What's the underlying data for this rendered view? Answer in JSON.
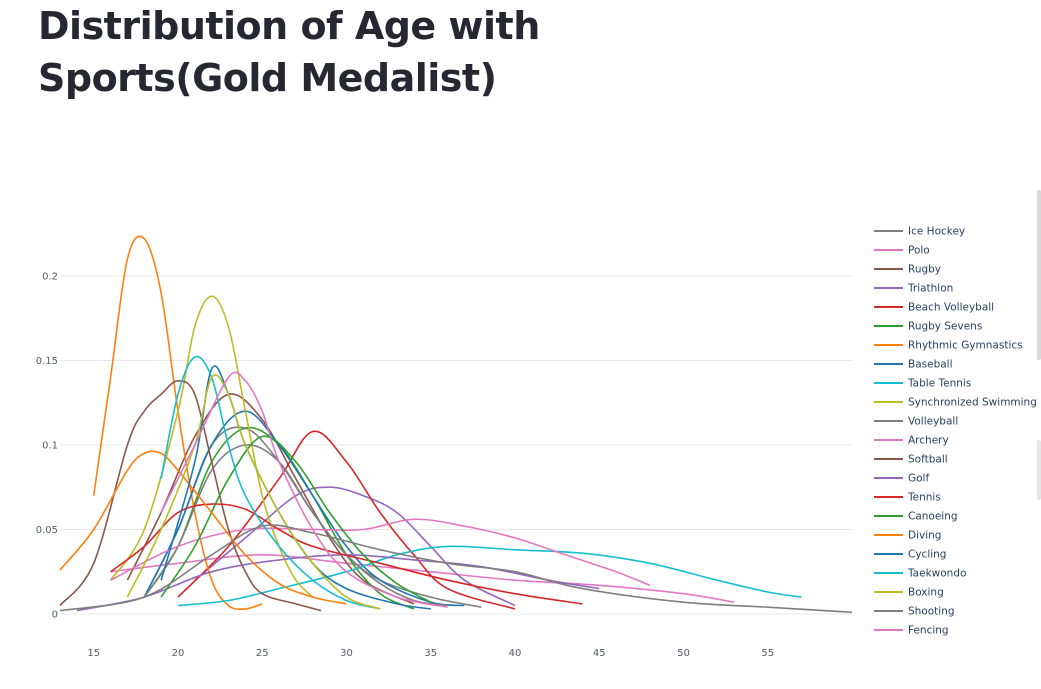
{
  "page": {
    "title": "Distribution of Age with Sports(Gold Medalist)"
  },
  "chart_data": {
    "type": "line",
    "title": "",
    "xlabel": "",
    "ylabel": "",
    "xlim": [
      13,
      60
    ],
    "ylim": [
      0,
      0.2
    ],
    "x_ticks": [
      15,
      20,
      25,
      30,
      35,
      40,
      45,
      50,
      55
    ],
    "y_ticks": [
      0,
      0.05,
      0.1,
      0.15,
      0.2
    ],
    "y_tick_labels": [
      "0",
      "0.05",
      "0.1",
      "0.15",
      "0.2"
    ],
    "grid": true,
    "legend": "right",
    "series": [
      {
        "name": "Ice Hockey",
        "color": "#7f7f7f",
        "points": [
          [
            18,
            0.01
          ],
          [
            20,
            0.05
          ],
          [
            22,
            0.1
          ],
          [
            24,
            0.11
          ],
          [
            26,
            0.09
          ],
          [
            28,
            0.06
          ],
          [
            30,
            0.035
          ],
          [
            32,
            0.02
          ],
          [
            35,
            0.01
          ],
          [
            38,
            0.004
          ]
        ]
      },
      {
        "name": "Polo",
        "color": "#e377c2",
        "points": [
          [
            16,
            0.025
          ],
          [
            20,
            0.03
          ],
          [
            25,
            0.035
          ],
          [
            30,
            0.03
          ],
          [
            35,
            0.025
          ],
          [
            40,
            0.02
          ],
          [
            45,
            0.017
          ],
          [
            50,
            0.012
          ],
          [
            53,
            0.007
          ]
        ]
      },
      {
        "name": "Rugby",
        "color": "#8c564b",
        "points": [
          [
            17,
            0.02
          ],
          [
            19,
            0.06
          ],
          [
            21,
            0.105
          ],
          [
            23,
            0.13
          ],
          [
            25,
            0.115
          ],
          [
            27,
            0.08
          ],
          [
            29,
            0.045
          ],
          [
            31,
            0.02
          ],
          [
            34,
            0.006
          ]
        ]
      },
      {
        "name": "Triathlon",
        "color": "#9467bd",
        "points": [
          [
            21,
            0.02
          ],
          [
            24,
            0.045
          ],
          [
            27,
            0.07
          ],
          [
            29,
            0.075
          ],
          [
            31,
            0.07
          ],
          [
            33,
            0.06
          ],
          [
            35,
            0.04
          ],
          [
            37,
            0.02
          ],
          [
            40,
            0.005
          ]
        ]
      },
      {
        "name": "Beach Volleyball",
        "color": "#d62728",
        "points": [
          [
            20,
            0.01
          ],
          [
            23,
            0.04
          ],
          [
            26,
            0.08
          ],
          [
            28,
            0.108
          ],
          [
            30,
            0.09
          ],
          [
            32,
            0.06
          ],
          [
            34,
            0.035
          ],
          [
            36,
            0.015
          ],
          [
            40,
            0.003
          ]
        ]
      },
      {
        "name": "Rugby Sevens",
        "color": "#2ca02c",
        "points": [
          [
            18,
            0.01
          ],
          [
            20,
            0.04
          ],
          [
            22,
            0.09
          ],
          [
            24,
            0.11
          ],
          [
            26,
            0.1
          ],
          [
            28,
            0.07
          ],
          [
            30,
            0.035
          ],
          [
            32,
            0.012
          ],
          [
            34,
            0.003
          ]
        ]
      },
      {
        "name": "Rhythmic Gymnastics",
        "color": "#ff7f0e",
        "points": [
          [
            15,
            0.07
          ],
          [
            16,
            0.14
          ],
          [
            17,
            0.21
          ],
          [
            18,
            0.222
          ],
          [
            19,
            0.19
          ],
          [
            20,
            0.12
          ],
          [
            21,
            0.06
          ],
          [
            22,
            0.02
          ],
          [
            23,
            0.005
          ],
          [
            24,
            0.003
          ],
          [
            25,
            0.006
          ]
        ]
      },
      {
        "name": "Baseball",
        "color": "#1f77b4",
        "points": [
          [
            18,
            0.01
          ],
          [
            20,
            0.05
          ],
          [
            22,
            0.1
          ],
          [
            24,
            0.12
          ],
          [
            26,
            0.1
          ],
          [
            28,
            0.07
          ],
          [
            30,
            0.04
          ],
          [
            32,
            0.02
          ],
          [
            35,
            0.007
          ],
          [
            37,
            0.005
          ]
        ]
      },
      {
        "name": "Table Tennis",
        "color": "#17becf",
        "points": [
          [
            20,
            0.005
          ],
          [
            23,
            0.008
          ],
          [
            26,
            0.015
          ],
          [
            30,
            0.025
          ],
          [
            33,
            0.035
          ],
          [
            36,
            0.04
          ],
          [
            40,
            0.038
          ],
          [
            44,
            0.036
          ],
          [
            48,
            0.03
          ],
          [
            52,
            0.02
          ],
          [
            55,
            0.013
          ],
          [
            57,
            0.01
          ]
        ]
      },
      {
        "name": "Synchronized Swimming",
        "color": "#bcbd22",
        "points": [
          [
            16,
            0.02
          ],
          [
            18,
            0.05
          ],
          [
            20,
            0.12
          ],
          [
            21,
            0.17
          ],
          [
            22,
            0.188
          ],
          [
            23,
            0.17
          ],
          [
            24,
            0.12
          ],
          [
            25,
            0.07
          ],
          [
            26,
            0.04
          ],
          [
            27,
            0.02
          ],
          [
            28,
            0.01
          ]
        ]
      },
      {
        "name": "Volleyball",
        "color": "#7f7f7f",
        "points": [
          [
            18,
            0.01
          ],
          [
            20,
            0.04
          ],
          [
            22,
            0.085
          ],
          [
            24,
            0.1
          ],
          [
            26,
            0.09
          ],
          [
            28,
            0.06
          ],
          [
            30,
            0.035
          ],
          [
            32,
            0.018
          ],
          [
            34,
            0.008
          ],
          [
            36,
            0.005
          ]
        ]
      },
      {
        "name": "Archery",
        "color": "#e377c2",
        "points": [
          [
            16,
            0.02
          ],
          [
            20,
            0.04
          ],
          [
            24,
            0.05
          ],
          [
            28,
            0.05
          ],
          [
            31,
            0.05
          ],
          [
            34,
            0.056
          ],
          [
            37,
            0.052
          ],
          [
            40,
            0.045
          ],
          [
            43,
            0.035
          ],
          [
            46,
            0.025
          ],
          [
            48,
            0.017
          ]
        ]
      },
      {
        "name": "Softball",
        "color": "#8c564b",
        "points": [
          [
            13,
            0.005
          ],
          [
            15,
            0.03
          ],
          [
            17,
            0.1
          ],
          [
            18,
            0.12
          ],
          [
            19,
            0.13
          ],
          [
            20,
            0.138
          ],
          [
            21,
            0.13
          ],
          [
            22,
            0.09
          ],
          [
            23,
            0.05
          ],
          [
            24,
            0.025
          ],
          [
            25,
            0.012
          ],
          [
            27,
            0.006
          ],
          [
            28.5,
            0.002
          ]
        ]
      },
      {
        "name": "Golf",
        "color": "#9467bd",
        "points": [
          [
            14,
            0.002
          ],
          [
            18,
            0.01
          ],
          [
            22,
            0.025
          ],
          [
            26,
            0.032
          ],
          [
            30,
            0.035
          ],
          [
            34,
            0.032
          ],
          [
            38,
            0.028
          ],
          [
            42,
            0.02
          ],
          [
            45,
            0.015
          ]
        ]
      },
      {
        "name": "Tennis",
        "color": "#d62728",
        "points": [
          [
            16,
            0.025
          ],
          [
            18,
            0.04
          ],
          [
            20,
            0.06
          ],
          [
            22,
            0.065
          ],
          [
            24,
            0.062
          ],
          [
            26,
            0.05
          ],
          [
            28,
            0.04
          ],
          [
            32,
            0.03
          ],
          [
            36,
            0.02
          ],
          [
            40,
            0.012
          ],
          [
            44,
            0.006
          ]
        ]
      },
      {
        "name": "Canoeing",
        "color": "#2ca02c",
        "points": [
          [
            19,
            0.01
          ],
          [
            21,
            0.04
          ],
          [
            23,
            0.08
          ],
          [
            25,
            0.105
          ],
          [
            27,
            0.09
          ],
          [
            29,
            0.06
          ],
          [
            31,
            0.035
          ],
          [
            33,
            0.018
          ],
          [
            35,
            0.007
          ]
        ]
      },
      {
        "name": "Diving",
        "color": "#ff7f0e",
        "points": [
          [
            13,
            0.026
          ],
          [
            15,
            0.05
          ],
          [
            17,
            0.085
          ],
          [
            18,
            0.095
          ],
          [
            19,
            0.095
          ],
          [
            20,
            0.085
          ],
          [
            22,
            0.06
          ],
          [
            24,
            0.035
          ],
          [
            26,
            0.018
          ],
          [
            28,
            0.01
          ],
          [
            30,
            0.006
          ]
        ]
      },
      {
        "name": "Cycling",
        "color": "#1f77b4",
        "points": [
          [
            19,
            0.02
          ],
          [
            21,
            0.09
          ],
          [
            22,
            0.145
          ],
          [
            23,
            0.13
          ],
          [
            24,
            0.1
          ],
          [
            26,
            0.06
          ],
          [
            28,
            0.03
          ],
          [
            30,
            0.015
          ],
          [
            33,
            0.006
          ],
          [
            35,
            0.003
          ]
        ]
      },
      {
        "name": "Taekwondo",
        "color": "#17becf",
        "points": [
          [
            19,
            0.08
          ],
          [
            20,
            0.13
          ],
          [
            21,
            0.152
          ],
          [
            22,
            0.14
          ],
          [
            23,
            0.1
          ],
          [
            24,
            0.07
          ],
          [
            26,
            0.04
          ],
          [
            28,
            0.02
          ],
          [
            30,
            0.008
          ],
          [
            32,
            0.003
          ]
        ]
      },
      {
        "name": "Boxing",
        "color": "#bcbd22",
        "points": [
          [
            17,
            0.01
          ],
          [
            19,
            0.05
          ],
          [
            21,
            0.1
          ],
          [
            22,
            0.14
          ],
          [
            23,
            0.13
          ],
          [
            24,
            0.1
          ],
          [
            26,
            0.06
          ],
          [
            28,
            0.03
          ],
          [
            30,
            0.01
          ],
          [
            32,
            0.003
          ]
        ]
      },
      {
        "name": "Shooting",
        "color": "#7f7f7f",
        "points": [
          [
            13,
            0.002
          ],
          [
            18,
            0.01
          ],
          [
            22,
            0.035
          ],
          [
            25,
            0.052
          ],
          [
            28,
            0.048
          ],
          [
            32,
            0.038
          ],
          [
            36,
            0.03
          ],
          [
            40,
            0.025
          ],
          [
            44,
            0.015
          ],
          [
            50,
            0.007
          ],
          [
            55,
            0.004
          ],
          [
            60,
            0.001
          ]
        ]
      },
      {
        "name": "Fencing",
        "color": "#e377c2",
        "points": [
          [
            19,
            0.06
          ],
          [
            21,
            0.1
          ],
          [
            23,
            0.14
          ],
          [
            24,
            0.138
          ],
          [
            25,
            0.12
          ],
          [
            26,
            0.09
          ],
          [
            28,
            0.05
          ],
          [
            30,
            0.025
          ],
          [
            33,
            0.01
          ],
          [
            36,
            0.004
          ]
        ]
      }
    ]
  }
}
